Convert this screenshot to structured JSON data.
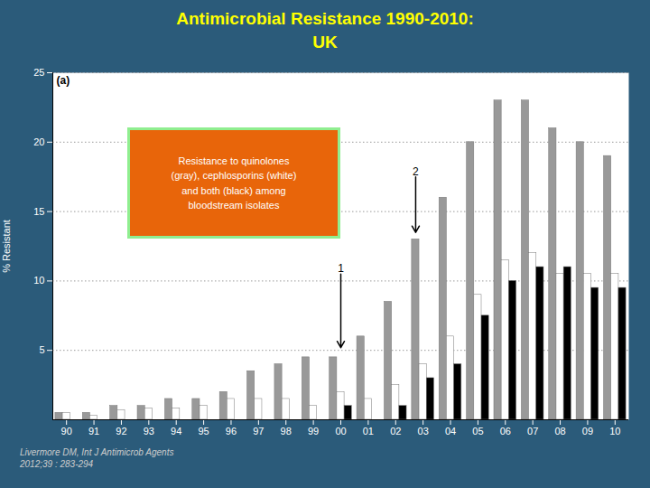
{
  "chart_data": {
    "type": "bar",
    "title": "Antimicrobial Resistance 1990-2010:",
    "subtitle": "UK",
    "title_color": "#FFFF00",
    "background_color": "#2B5B7A",
    "plot_bg_color": "#FFFFFF",
    "categories": [
      "90",
      "91",
      "92",
      "93",
      "94",
      "95",
      "96",
      "97",
      "98",
      "99",
      "00",
      "01",
      "02",
      "03",
      "04",
      "05",
      "06",
      "07",
      "08",
      "09",
      "10"
    ],
    "series": [
      {
        "color": "#999999",
        "values": [
          0.5,
          0.5,
          1.0,
          1.0,
          1.5,
          1.5,
          2.0,
          3.5,
          4.0,
          4.5,
          4.5,
          6.0,
          8.5,
          13.0,
          16.0,
          20.0,
          23.0,
          23.0,
          21.0,
          20.0,
          19.0
        ]
      },
      {
        "color": "#FFFFFF",
        "values": [
          0.5,
          0.3,
          0.7,
          0.8,
          0.8,
          1.0,
          1.5,
          1.5,
          1.5,
          1.0,
          2.0,
          1.5,
          2.5,
          4.0,
          6.0,
          9.0,
          11.5,
          12.0,
          10.5,
          10.5,
          10.5
        ]
      },
      {
        "color": "#000000",
        "values": [
          0.0,
          0.0,
          0.0,
          0.0,
          0.0,
          0.0,
          0.0,
          0.0,
          0.0,
          0.0,
          1.0,
          0.0,
          1.0,
          3.0,
          4.0,
          7.5,
          10.0,
          11.0,
          11.0,
          9.5,
          9.5
        ]
      }
    ],
    "ylabel": "% Resistant",
    "ylim": [
      0,
      25
    ],
    "yticks": [
      5,
      10,
      15,
      20,
      25
    ],
    "grid": true,
    "subplot_label": "(a)",
    "annotations": [
      {
        "text": "1",
        "x": "00",
        "y": 5.2,
        "text_y": 10.5
      },
      {
        "text": "2",
        "x": "03",
        "series": 0,
        "y": 13.5,
        "text_y": 17.5
      }
    ],
    "note": {
      "text": "Resistance to quinolones\n(gray), cephlosporins (white)\nand both (black) among\nbloodstream isolates",
      "color": "#FFFFFF",
      "background": "#E8650A",
      "border": "#90EE90"
    },
    "footnote": "Livermore DM, Int J Antimicrob Agents\n2012;39 : 283-294",
    "footnote_color": "#CCCCCC"
  }
}
